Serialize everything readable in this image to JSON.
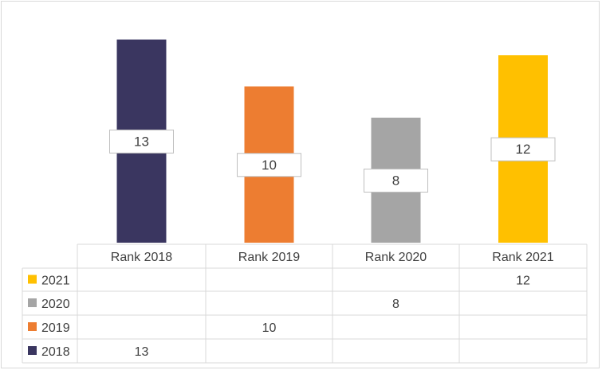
{
  "chart_data": {
    "type": "bar",
    "categories": [
      "Rank 2018",
      "Rank 2019",
      "Rank 2020",
      "Rank 2021"
    ],
    "series": [
      {
        "name": "2021",
        "color": "#ffc000",
        "values": [
          null,
          null,
          null,
          12
        ]
      },
      {
        "name": "2020",
        "color": "#a5a5a5",
        "values": [
          null,
          null,
          8,
          null
        ]
      },
      {
        "name": "2019",
        "color": "#ed7d31",
        "values": [
          null,
          10,
          null,
          null
        ]
      },
      {
        "name": "2018",
        "color": "#3a3660",
        "values": [
          13,
          null,
          null,
          null
        ]
      }
    ],
    "data_labels": true,
    "data_table": true,
    "legend": "data-table-left",
    "grid": false,
    "stacked": true,
    "ylim": [
      0,
      14
    ]
  }
}
